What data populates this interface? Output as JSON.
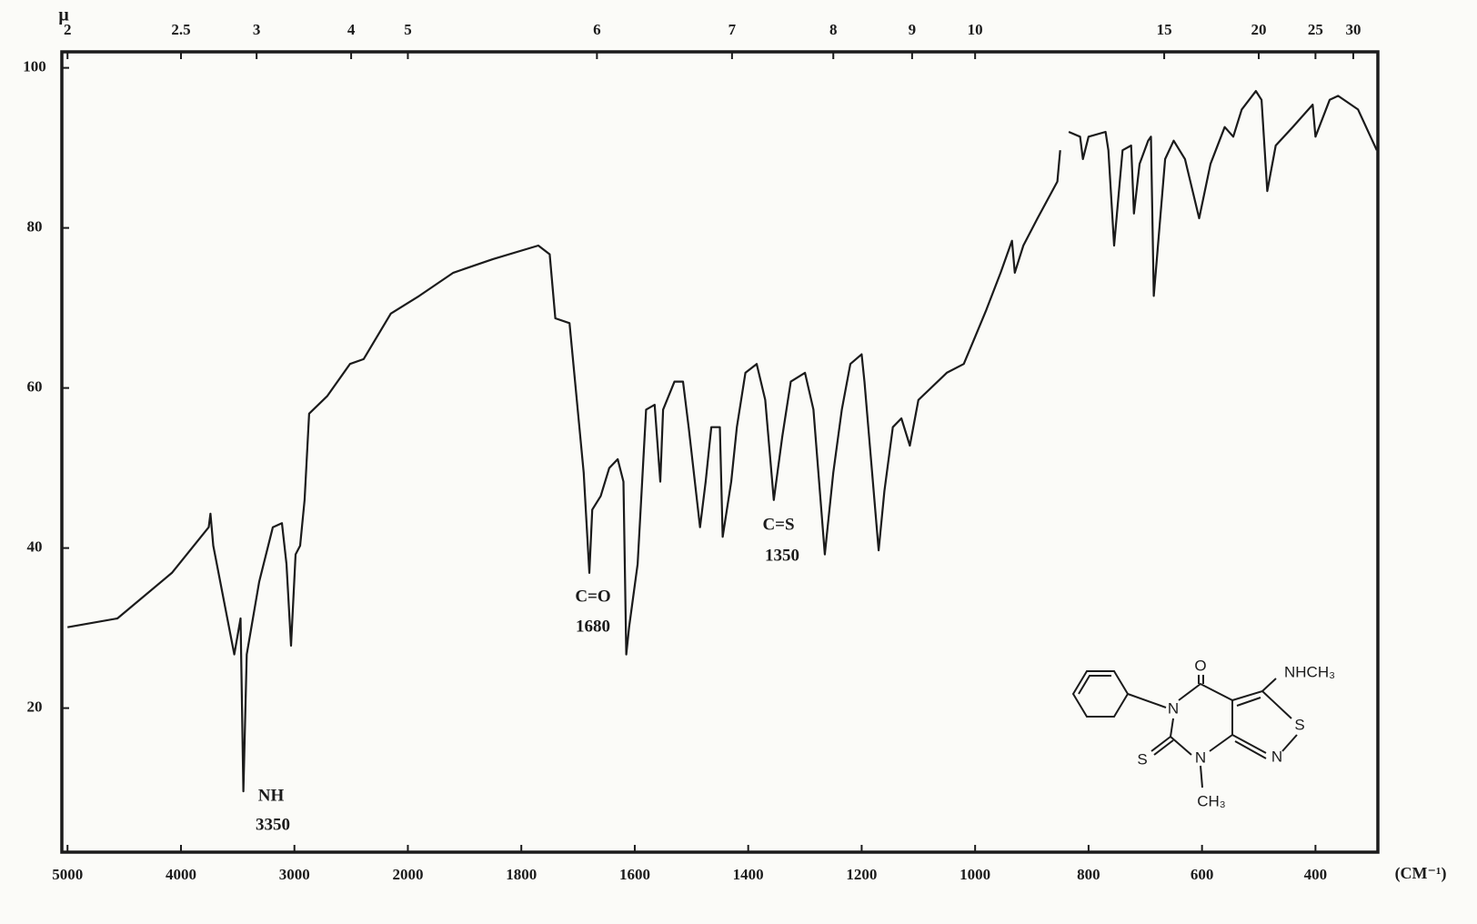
{
  "chart_data": {
    "type": "line",
    "xlabel": "(CM⁻¹)",
    "x2label": "μ",
    "color": "#1b1b1b",
    "xlim": [
      5050,
      290
    ],
    "xticks": [
      5000,
      4000,
      3000,
      2000,
      1800,
      1600,
      1400,
      1200,
      1000,
      800,
      600,
      400
    ],
    "x2ticks": [
      2,
      2.5,
      3,
      4,
      5,
      6,
      7,
      8,
      9,
      10,
      15,
      20,
      25,
      30
    ],
    "ylim": [
      2,
      102
    ],
    "yticks": [
      20,
      40,
      60,
      80,
      100
    ],
    "grid": false,
    "x": [
      5000,
      4560,
      4080,
      3755,
      3740,
      3715,
      3530,
      3475,
      3450,
      3420,
      3310,
      3190,
      3110,
      3070,
      3030,
      2990,
      2950,
      2910,
      2870,
      2710,
      2510,
      2390,
      2150,
      1980,
      1920,
      1850,
      1770,
      1750,
      1740,
      1715,
      1690,
      1680,
      1675,
      1660,
      1645,
      1630,
      1620,
      1615,
      1610,
      1595,
      1580,
      1565,
      1555,
      1550,
      1530,
      1515,
      1505,
      1485,
      1475,
      1465,
      1450,
      1445,
      1430,
      1420,
      1405,
      1385,
      1370,
      1355,
      1340,
      1325,
      1300,
      1285,
      1265,
      1250,
      1235,
      1220,
      1200,
      1195,
      1170,
      1160,
      1145,
      1130,
      1115,
      1100,
      1050,
      1020,
      1000,
      980,
      955,
      935,
      930,
      915,
      890,
      855,
      850,
      842,
      835,
      815,
      810,
      800,
      770,
      765,
      755,
      740,
      725,
      720,
      710,
      695,
      690,
      685,
      675,
      665,
      650,
      630,
      605,
      585,
      560,
      545,
      530,
      505,
      495,
      485,
      470,
      440,
      405,
      400,
      375,
      360,
      325,
      292
    ],
    "values": [
      30.1,
      31.2,
      36.9,
      42.6,
      44.3,
      40.3,
      26.7,
      31.2,
      9.6,
      26.7,
      35.8,
      42.6,
      43.1,
      38.0,
      27.8,
      39.2,
      40.3,
      46.0,
      56.8,
      59.0,
      63.0,
      63.6,
      69.3,
      71.5,
      74.4,
      76.1,
      77.8,
      76.7,
      68.7,
      68.1,
      49.4,
      36.9,
      44.8,
      46.5,
      50.0,
      51.1,
      48.3,
      26.7,
      30.1,
      38.0,
      57.3,
      57.9,
      48.3,
      57.3,
      60.8,
      60.8,
      55.1,
      42.6,
      48.3,
      55.1,
      55.1,
      41.4,
      48.3,
      55.1,
      61.9,
      63.0,
      58.5,
      46.0,
      53.9,
      60.8,
      61.9,
      57.3,
      39.2,
      49.4,
      57.3,
      63.0,
      64.2,
      60.8,
      39.7,
      47.1,
      55.1,
      56.2,
      52.8,
      58.5,
      61.9,
      63.0,
      66.4,
      69.8,
      74.4,
      78.4,
      74.4,
      77.8,
      81.2,
      85.8,
      89.7,
      null,
      92.0,
      91.4,
      88.6,
      91.4,
      92.0,
      89.7,
      77.8,
      89.7,
      90.3,
      81.8,
      88.0,
      90.9,
      91.4,
      71.5,
      80.1,
      88.6,
      90.9,
      88.6,
      81.2,
      88.0,
      92.6,
      91.4,
      94.8,
      97.1,
      96.0,
      84.6,
      90.3,
      92.6,
      95.4,
      91.4,
      96.0,
      96.5,
      94.8,
      89.7
    ],
    "annotations": [
      {
        "label": "NH",
        "text": "3350"
      },
      {
        "label": "C=O",
        "text": "1680"
      },
      {
        "label": "C=S",
        "text": "1350"
      }
    ],
    "structure_labels": [
      "O",
      "NHCH₃",
      "N",
      "S",
      "N",
      "S",
      "N",
      "CH₃"
    ]
  }
}
